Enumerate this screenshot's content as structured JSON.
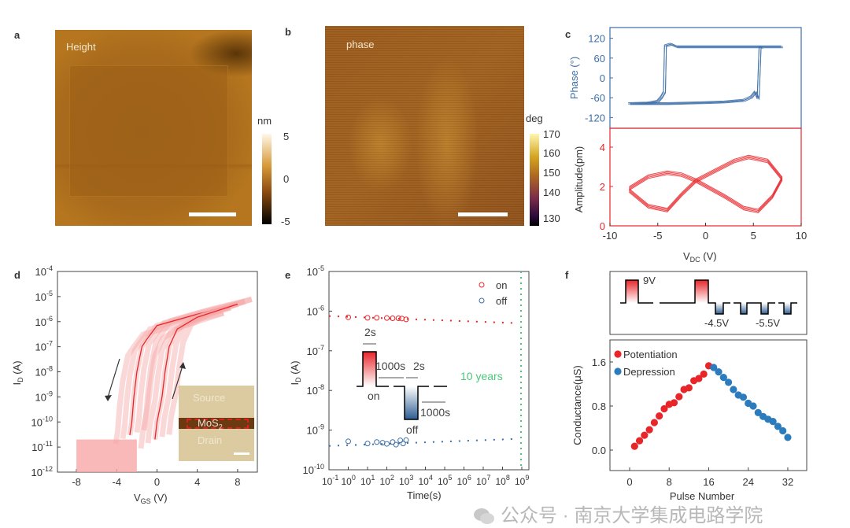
{
  "panels": {
    "a": {
      "label": "a",
      "title": "Height",
      "colorbar_unit": "nm",
      "colorbar_ticks": [
        "5",
        "0",
        "-5"
      ]
    },
    "b": {
      "label": "b",
      "title": "phase",
      "colorbar_unit": "deg",
      "colorbar_ticks": [
        "170",
        "160",
        "150",
        "140",
        "130"
      ]
    },
    "c": {
      "label": "c"
    },
    "d": {
      "label": "d"
    },
    "e": {
      "label": "e"
    },
    "f": {
      "label": "f"
    }
  },
  "inset_d": {
    "source": "Source",
    "channel": "MoS",
    "channel_sub": "2",
    "drain": "Drain"
  },
  "watermark": {
    "text": "公众号 · 南京大学集成电路学院"
  },
  "colors": {
    "blue": "#3d6fa8",
    "red": "#e8262a",
    "pink": "#f7a8a8",
    "green": "#4cc87a"
  },
  "chart_data": [
    {
      "id": "c-phase",
      "type": "line",
      "ylabel": "Phase (°)",
      "ylim": [
        -150,
        150
      ],
      "yticks": [
        120,
        60,
        0,
        -60,
        -120
      ],
      "xlim": [
        -10,
        10
      ],
      "series": [
        {
          "values": [
            [
              -8,
              -75
            ],
            [
              -6,
              -73
            ],
            [
              -5,
              -68
            ],
            [
              -4.6,
              -55
            ],
            [
              -4.3,
              -40
            ],
            [
              -4.2,
              100
            ],
            [
              -3.6,
              105
            ],
            [
              -3,
              97
            ],
            [
              0,
              97
            ],
            [
              5,
              97
            ],
            [
              8,
              97
            ],
            [
              6,
              97
            ],
            [
              5.7,
              95
            ],
            [
              5.5,
              -60
            ],
            [
              5.2,
              -40
            ],
            [
              4.8,
              -55
            ],
            [
              4,
              -65
            ],
            [
              2,
              -70
            ],
            [
              0,
              -72
            ],
            [
              -4,
              -75
            ],
            [
              -8,
              -75
            ]
          ]
        }
      ]
    },
    {
      "id": "c-amp",
      "type": "line",
      "ylabel": "Amplitude(pm)",
      "ylim": [
        0,
        5
      ],
      "yticks": [
        4,
        2,
        0
      ],
      "xlim": [
        -10,
        10
      ],
      "xticks": [
        -10,
        -5,
        0,
        5,
        10
      ],
      "xlabel": "V",
      "xlabel_sub": "DC",
      "xlabel_unit": "(V)",
      "series": [
        {
          "values": [
            [
              -8,
              1.8
            ],
            [
              -6,
              1.0
            ],
            [
              -4,
              0.8
            ],
            [
              -2.5,
              1.6
            ],
            [
              -1,
              2.3
            ],
            [
              1,
              2.8
            ],
            [
              3,
              3.3
            ],
            [
              4.5,
              3.5
            ],
            [
              6.5,
              3.3
            ],
            [
              8,
              2.4
            ],
            [
              7,
              1.5
            ],
            [
              5.5,
              0.75
            ],
            [
              4,
              0.9
            ],
            [
              2,
              1.5
            ],
            [
              -1,
              2.3
            ],
            [
              -2.5,
              2.6
            ],
            [
              -4,
              2.7
            ],
            [
              -6,
              2.5
            ],
            [
              -8,
              1.9
            ]
          ]
        }
      ]
    },
    {
      "id": "d",
      "type": "line",
      "xlabel": "V",
      "xlabel_sub": "GS",
      "xlabel_unit": "(V)",
      "ylabel": "I",
      "ylabel_sub": "D",
      "ylabel_unit": "(A)",
      "yscale": "log",
      "ylim_exp": [
        -12,
        -4
      ],
      "ytick_exps": [
        -4,
        -5,
        -6,
        -7,
        -8,
        -9,
        -10,
        -11,
        -12
      ],
      "xlim": [
        -10,
        10
      ],
      "xticks": [
        -8,
        -4,
        0,
        4,
        8
      ],
      "series": [
        {
          "sweep": "down",
          "values": [
            [
              8,
              5e-06
            ],
            [
              4,
              2e-06
            ],
            [
              0,
              7e-07
            ],
            [
              -1,
              2e-07
            ],
            [
              -1.5,
              1e-07
            ],
            [
              -2,
              1e-08
            ],
            [
              -2.3,
              1e-09
            ],
            [
              -2.5,
              1e-10
            ],
            [
              -2.7,
              3e-11
            ]
          ]
        },
        {
          "sweep": "up",
          "values": [
            [
              -0.2,
              2e-11
            ],
            [
              0,
              1e-10
            ],
            [
              0.5,
              1e-09
            ],
            [
              0.8,
              1e-08
            ],
            [
              1.2,
              1e-07
            ],
            [
              2,
              5e-07
            ],
            [
              4,
              1.5e-06
            ],
            [
              8,
              5e-06
            ]
          ]
        }
      ],
      "off_floor": [
        1e-12,
        2e-11
      ]
    },
    {
      "id": "e",
      "type": "scatter",
      "xlabel": "Time(s)",
      "ylabel": "I",
      "ylabel_sub": "D",
      "ylabel_unit": "(A)",
      "xscale": "log",
      "yscale": "log",
      "xlim_exp": [
        -1,
        9
      ],
      "xtick_exps": [
        -1,
        0,
        1,
        2,
        3,
        4,
        5,
        6,
        7,
        8,
        9
      ],
      "ylim_exp": [
        -10,
        -5
      ],
      "ytick_exps": [
        -5,
        -6,
        -7,
        -8,
        -9,
        -10
      ],
      "legend": "top-right",
      "series": [
        {
          "name": "on",
          "values": [
            [
              1,
              7e-07
            ],
            [
              10,
              6.8e-07
            ],
            [
              30,
              6.8e-07
            ],
            [
              100,
              6.7e-07
            ],
            [
              200,
              6.6e-07
            ],
            [
              400,
              6.6e-07
            ],
            [
              600,
              6.5e-07
            ],
            [
              1000,
              6.2e-07
            ]
          ],
          "trend": [
            [
              0.1,
              7.5e-07
            ],
            [
              500000000.0,
              5e-07
            ]
          ]
        },
        {
          "name": "off",
          "values": [
            [
              1,
              5.2e-10
            ],
            [
              10,
              4.6e-10
            ],
            [
              30,
              5e-10
            ],
            [
              60,
              4.8e-10
            ],
            [
              100,
              4.5e-10
            ],
            [
              200,
              5e-10
            ],
            [
              300,
              4.3e-10
            ],
            [
              500,
              5.5e-10
            ],
            [
              700,
              4.6e-10
            ],
            [
              1000,
              5.6e-10
            ]
          ],
          "trend": [
            [
              0.1,
              4e-10
            ],
            [
              500000000.0,
              6e-10
            ]
          ]
        }
      ],
      "marker_line": {
        "x": 500000000.0,
        "label": "10 years"
      },
      "inset": {
        "on": "on",
        "off": "off",
        "t_pulse": "2s",
        "t_wait": "1000s",
        "t_pulse2": "2s",
        "t_wait2": "1000s"
      }
    },
    {
      "id": "f-pulses",
      "type": "diagram",
      "labels": [
        "9V",
        "-4.5V",
        "-5.5V"
      ]
    },
    {
      "id": "f",
      "type": "scatter",
      "xlabel": "Pulse Number",
      "ylabel": "Conductance(μS)",
      "xlim": [
        -4,
        36
      ],
      "xticks": [
        0,
        8,
        16,
        24,
        32
      ],
      "ylim": [
        -0.4,
        2.0
      ],
      "yticks": [
        0.0,
        0.8,
        1.6
      ],
      "legend": "top-left",
      "series": [
        {
          "name": "Potentiation",
          "x": [
            1,
            2,
            3,
            4,
            5,
            6,
            7,
            8,
            9,
            10,
            11,
            12,
            13,
            14,
            15,
            16
          ],
          "values": [
            0.07,
            0.17,
            0.27,
            0.37,
            0.5,
            0.62,
            0.75,
            0.83,
            0.86,
            0.97,
            1.1,
            1.13,
            1.26,
            1.3,
            1.38,
            1.53
          ]
        },
        {
          "name": "Depression",
          "x": [
            17,
            18,
            19,
            20,
            21,
            22,
            23,
            24,
            25,
            26,
            27,
            28,
            29,
            30,
            31,
            32
          ],
          "values": [
            1.5,
            1.42,
            1.32,
            1.23,
            1.1,
            1.0,
            0.96,
            0.85,
            0.8,
            0.68,
            0.61,
            0.56,
            0.52,
            0.43,
            0.35,
            0.23
          ]
        }
      ]
    }
  ]
}
